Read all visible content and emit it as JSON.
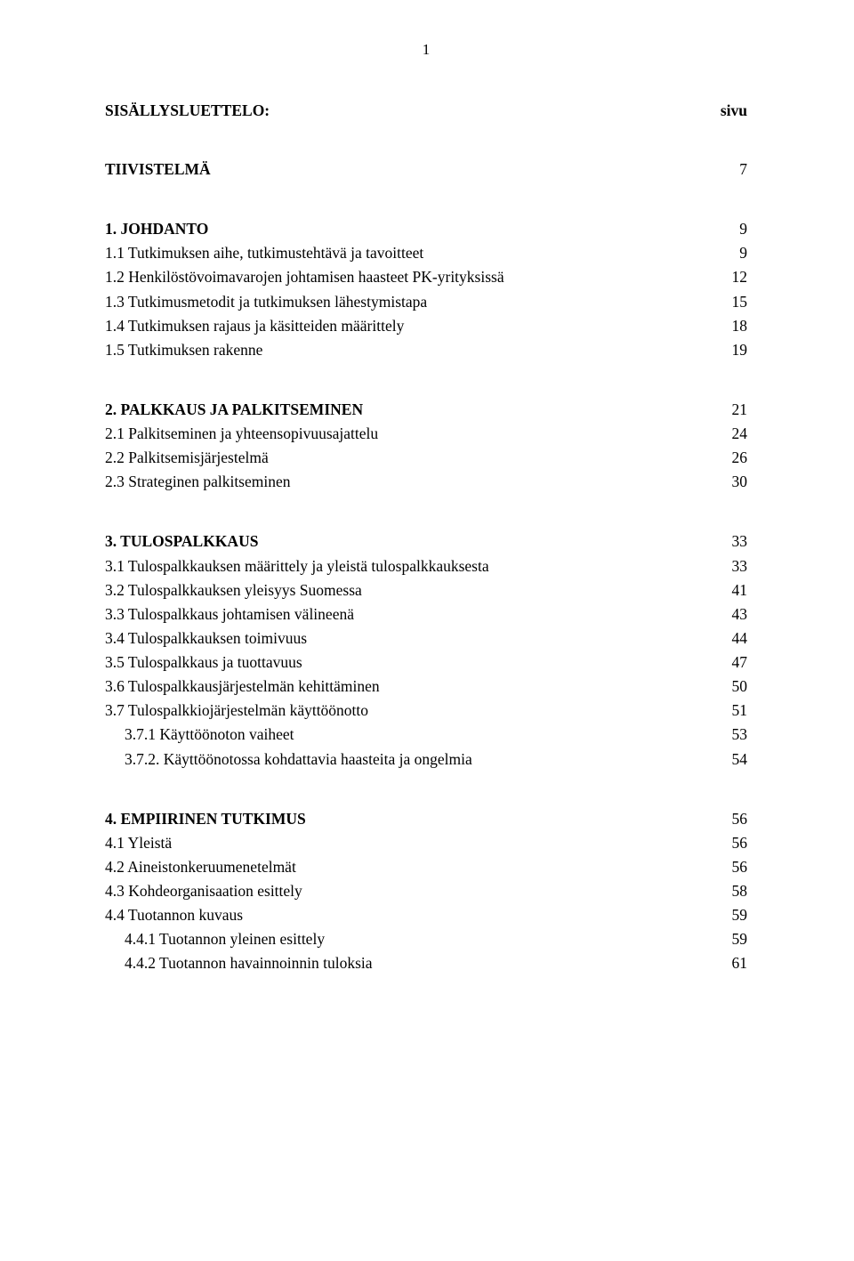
{
  "page_number": "1",
  "header": {
    "left": "SISÄLLYSLUETTELO:",
    "right": "sivu"
  },
  "tiivistelma": {
    "label": "TIIVISTELMÄ",
    "page": "7"
  },
  "sections": [
    {
      "head": {
        "label": "1. JOHDANTO",
        "page": "9"
      },
      "items": [
        {
          "label": "1.1 Tutkimuksen aihe, tutkimustehtävä ja tavoitteet",
          "page": "9"
        },
        {
          "label": "1.2 Henkilöstövoimavarojen johtamisen haasteet PK-yrityksissä",
          "page": "12"
        },
        {
          "label": "1.3 Tutkimusmetodit ja tutkimuksen lähestymistapa",
          "page": "15"
        },
        {
          "label": "1.4 Tutkimuksen rajaus ja käsitteiden määrittely",
          "page": "18"
        },
        {
          "label": "1.5 Tutkimuksen rakenne",
          "page": "19"
        }
      ]
    },
    {
      "head": {
        "label": "2. PALKKAUS JA PALKITSEMINEN",
        "page": "21"
      },
      "items": [
        {
          "label": "2.1 Palkitseminen ja yhteensopivuusajattelu",
          "page": "24"
        },
        {
          "label": "2.2 Palkitsemisjärjestelmä",
          "page": "26"
        },
        {
          "label": "2.3 Strateginen palkitseminen",
          "page": "30"
        }
      ]
    },
    {
      "head": {
        "label": "3. TULOSPALKKAUS",
        "page": "33"
      },
      "items": [
        {
          "label": "3.1 Tulospalkkauksen määrittely ja yleistä tulospalkkauksesta",
          "page": "33"
        },
        {
          "label": "3.2 Tulospalkkauksen yleisyys Suomessa",
          "page": "41"
        },
        {
          "label": "3.3 Tulospalkkaus johtamisen välineenä",
          "page": "43"
        },
        {
          "label": "3.4 Tulospalkkauksen toimivuus",
          "page": "44"
        },
        {
          "label": "3.5 Tulospalkkaus ja tuottavuus",
          "page": "47"
        },
        {
          "label": "3.6 Tulospalkkausjärjestelmän kehittäminen",
          "page": "50"
        },
        {
          "label": "3.7 Tulospalkkiojärjestelmän käyttöönotto",
          "page": "51"
        }
      ],
      "subitems": [
        {
          "label": "3.7.1 Käyttöönoton vaiheet",
          "page": "53"
        },
        {
          "label": "3.7.2. Käyttöönotossa kohdattavia haasteita ja ongelmia",
          "page": "54"
        }
      ]
    },
    {
      "head": {
        "label": "4. EMPIIRINEN TUTKIMUS",
        "page": "56"
      },
      "items": [
        {
          "label": "4.1 Yleistä",
          "page": "56"
        },
        {
          "label": "4.2 Aineistonkeruumenetelmät",
          "page": "56"
        },
        {
          "label": "4.3 Kohdeorganisaation esittely",
          "page": "58"
        },
        {
          "label": "4.4 Tuotannon kuvaus",
          "page": "59"
        }
      ],
      "subitems": [
        {
          "label": "4.4.1 Tuotannon yleinen esittely",
          "page": "59"
        },
        {
          "label": "4.4.2 Tuotannon havainnoinnin tuloksia",
          "page": "61"
        }
      ]
    }
  ]
}
